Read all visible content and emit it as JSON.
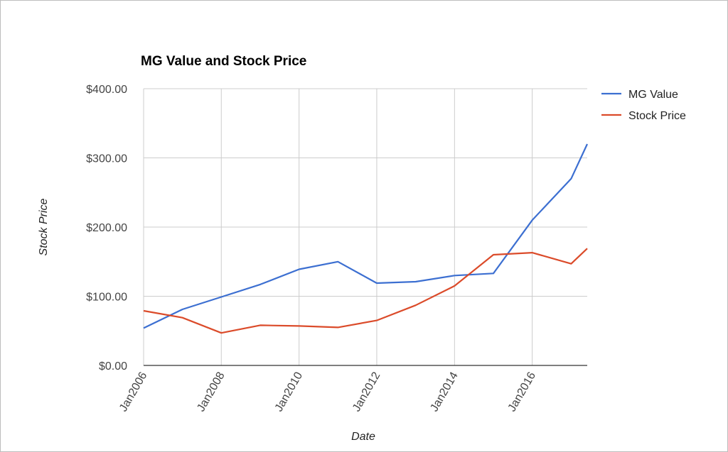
{
  "chart_data": {
    "type": "line",
    "title": "MG Value and Stock Price",
    "xlabel": "Date",
    "ylabel": "Stock Price",
    "x": [
      "2006-01",
      "2007-01",
      "2008-01",
      "2009-01",
      "2010-01",
      "2011-01",
      "2012-01",
      "2013-01",
      "2014-01",
      "2015-01",
      "2016-01",
      "2017-01",
      "2017-06"
    ],
    "x_ticks": [
      "Jan2006",
      "Jan2008",
      "Jan2010",
      "Jan2012",
      "Jan2014",
      "Jan2016"
    ],
    "y_ticks": [
      "$0.00",
      "$100.00",
      "$200.00",
      "$300.00",
      "$400.00"
    ],
    "ylim": [
      0,
      400
    ],
    "grid": true,
    "legend_position": "right",
    "series": [
      {
        "name": "MG Value",
        "color": "#3c6fd1",
        "values": [
          54,
          81,
          99,
          117,
          139,
          150,
          119,
          121,
          130,
          133,
          210,
          270,
          320
        ]
      },
      {
        "name": "Stock Price",
        "color": "#db4b2a",
        "values": [
          79,
          69,
          47,
          58,
          57,
          55,
          65,
          87,
          115,
          160,
          163,
          147,
          169
        ]
      }
    ]
  }
}
